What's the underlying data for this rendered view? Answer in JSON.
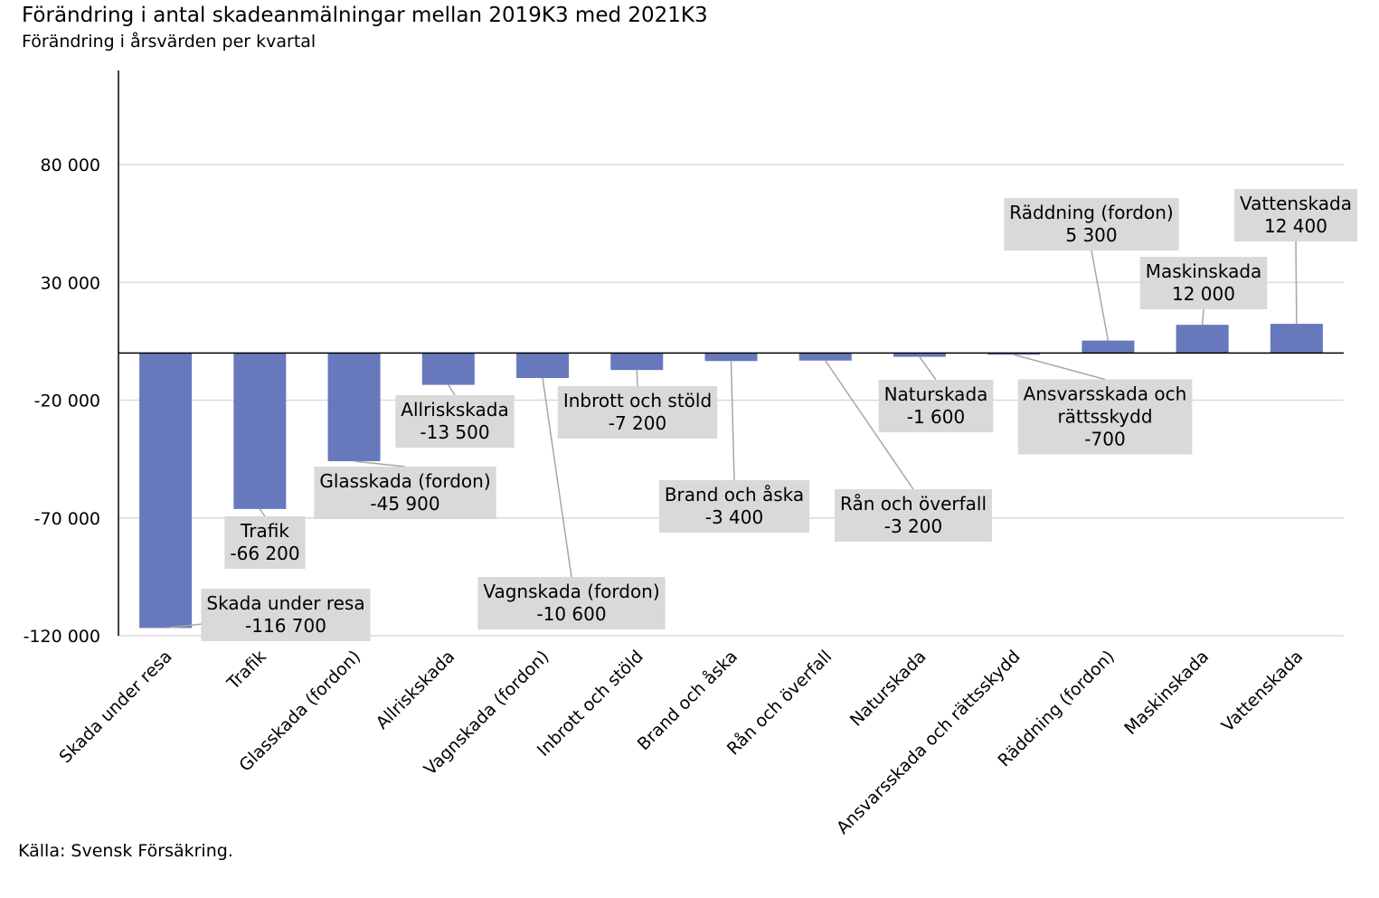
{
  "title": "Förändring i antal skadeanmälningar mellan 2019K3 med 2021K3",
  "subtitle": "Förändring i årsvärden per kvartal",
  "source": "Källa: Svensk Försäkring.",
  "colors": {
    "bar": "#6878bd",
    "label_box": "#d9d9d9",
    "grid": "#d9d9d9",
    "axis": "#000000",
    "leader": "#a6a6a6"
  },
  "chart_data": {
    "type": "bar",
    "title": "Förändring i antal skadeanmälningar mellan 2019K3 med 2021K3",
    "subtitle": "Förändring i årsvärden per kvartal",
    "categories": [
      "Skada under resa",
      "Trafik",
      "Glasskada (fordon)",
      "Allriskskada",
      "Vagnskada (fordon)",
      "Inbrott och stöld",
      "Brand och åska",
      "Rån och överfall",
      "Naturskada",
      "Ansvarsskada och rättsskydd",
      "Räddning (fordon)",
      "Maskinskada",
      "Vattenskada"
    ],
    "values": [
      -116700,
      -66200,
      -45900,
      -13500,
      -10600,
      -7200,
      -3400,
      -3200,
      -1600,
      -700,
      5300,
      12000,
      12400
    ],
    "data_labels": [
      [
        "Skada under resa",
        "-116 700"
      ],
      [
        "Trafik",
        "-66 200"
      ],
      [
        "Glasskada (fordon)",
        "-45 900"
      ],
      [
        "Allriskskada",
        "-13 500"
      ],
      [
        "Vagnskada (fordon)",
        "-10 600"
      ],
      [
        "Inbrott och stöld",
        "-7 200"
      ],
      [
        "Brand och åska",
        "-3 400"
      ],
      [
        "Rån och överfall",
        "-3 200"
      ],
      [
        "Naturskada",
        "-1 600"
      ],
      [
        "Ansvarsskada och",
        "rättsskydd",
        "-700"
      ],
      [
        "Räddning (fordon)",
        "5 300"
      ],
      [
        "Maskinskada",
        "12 000"
      ],
      [
        "Vattenskada",
        "12 400"
      ]
    ],
    "yticks": [
      80000,
      30000,
      -20000,
      -70000,
      -120000
    ],
    "ytick_labels": [
      "80 000",
      "30 000",
      "-20 000",
      "-70 000",
      "-120 000"
    ],
    "ylim": [
      -120000,
      120000
    ],
    "xlabel": "",
    "ylabel": "",
    "grid": true,
    "legend": "none"
  }
}
